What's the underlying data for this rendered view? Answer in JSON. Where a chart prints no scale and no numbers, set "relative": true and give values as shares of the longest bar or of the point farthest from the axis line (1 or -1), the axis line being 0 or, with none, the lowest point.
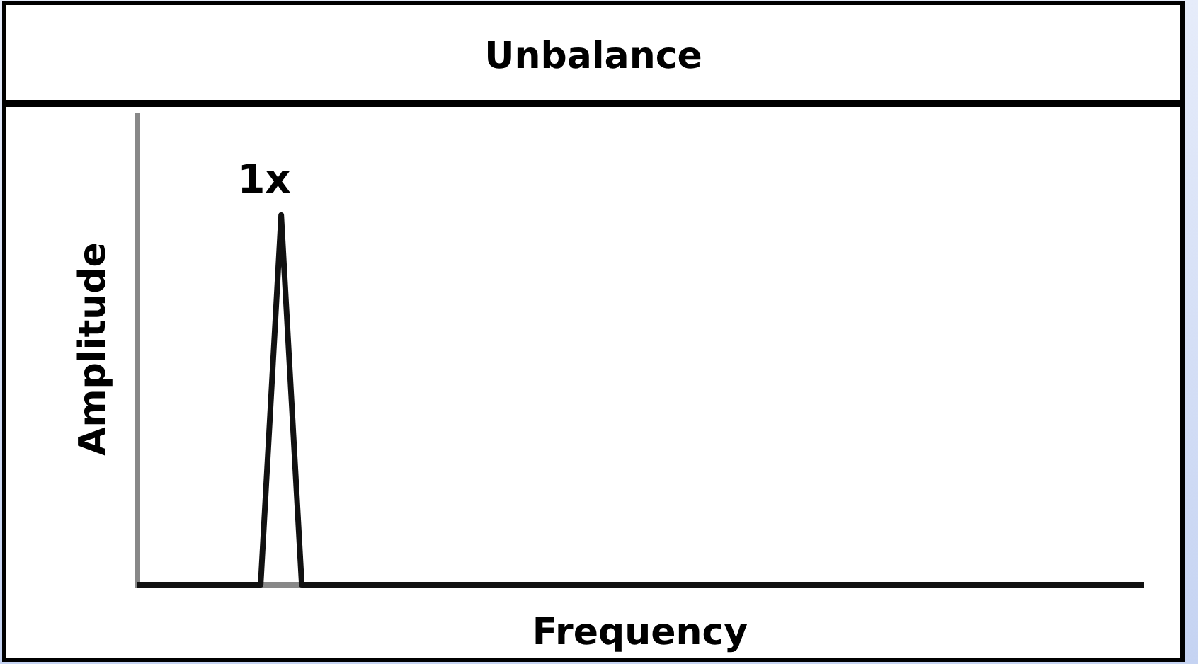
{
  "chart_data": {
    "type": "line",
    "title": "Unbalance",
    "xlabel": "Frequency",
    "ylabel": "Amplitude",
    "relative": true,
    "categories": [
      null,
      null,
      null,
      null,
      null,
      null,
      null,
      null,
      null,
      null,
      null,
      null,
      null,
      null,
      null,
      null,
      null,
      null,
      null,
      null,
      null,
      null,
      null,
      null,
      null,
      null,
      null,
      null,
      null,
      null,
      null,
      null,
      null,
      null,
      null,
      null,
      null,
      null,
      null,
      null,
      null,
      null,
      null,
      null,
      null,
      null,
      null,
      null,
      null,
      null
    ],
    "values": [
      0,
      0,
      0,
      0,
      0,
      0,
      0,
      1,
      0,
      0,
      0,
      0,
      0,
      0,
      0,
      0,
      0,
      0,
      0,
      0,
      0,
      0,
      0,
      0,
      0,
      0,
      0,
      0,
      0,
      0,
      0,
      0,
      0,
      0,
      0,
      0,
      0,
      0,
      0,
      0,
      0,
      0,
      0,
      0,
      0,
      0,
      0,
      0,
      0,
      0
    ],
    "color": "#111111",
    "annotations": [
      "1x"
    ]
  }
}
